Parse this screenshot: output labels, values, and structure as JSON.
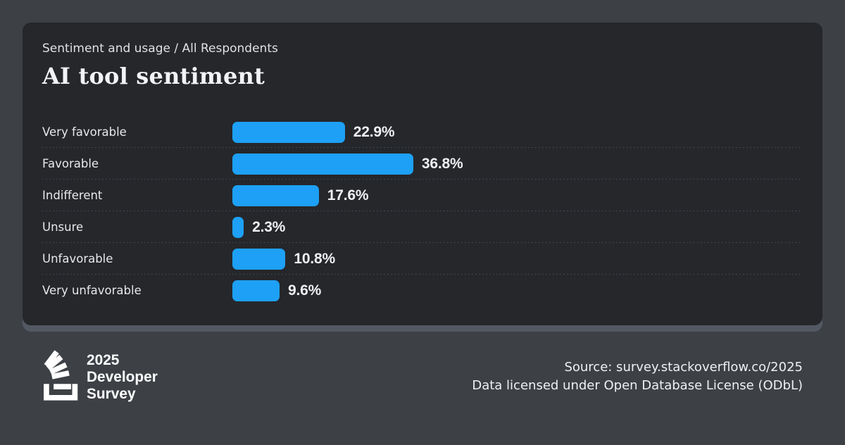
{
  "colors": {
    "page_bg": "#3d4146",
    "card_bg": "#25272b",
    "card_shadow": "#535962",
    "bar": "#1da0f6",
    "text_primary": "#f2f3f4",
    "text_secondary": "#e6e8ea"
  },
  "header": {
    "eyebrow": "Sentiment and usage / All Respondents",
    "title": "AI tool sentiment"
  },
  "chart_data": {
    "type": "bar",
    "orientation": "horizontal",
    "title": "AI tool sentiment",
    "subtitle": "Sentiment and usage / All Respondents",
    "categories": [
      "Very favorable",
      "Favorable",
      "Indifferent",
      "Unsure",
      "Unfavorable",
      "Very unfavorable"
    ],
    "values": [
      22.9,
      36.8,
      17.6,
      2.3,
      10.8,
      9.6
    ],
    "value_labels": [
      "22.9%",
      "36.8%",
      "17.6%",
      "2.3%",
      "10.8%",
      "9.6%"
    ],
    "unit": "%",
    "xlim": [
      0,
      100
    ],
    "bar_color": "#1da0f6",
    "grid": false,
    "legend": false,
    "row_dividers": "dotted"
  },
  "footer": {
    "logo_icon": "stackoverflow-logo-icon",
    "logo_lines": [
      "2025",
      "Developer",
      "Survey"
    ],
    "source": "Source: survey.stackoverflow.co/2025",
    "license": "Data licensed under Open Database License (ODbL)"
  }
}
